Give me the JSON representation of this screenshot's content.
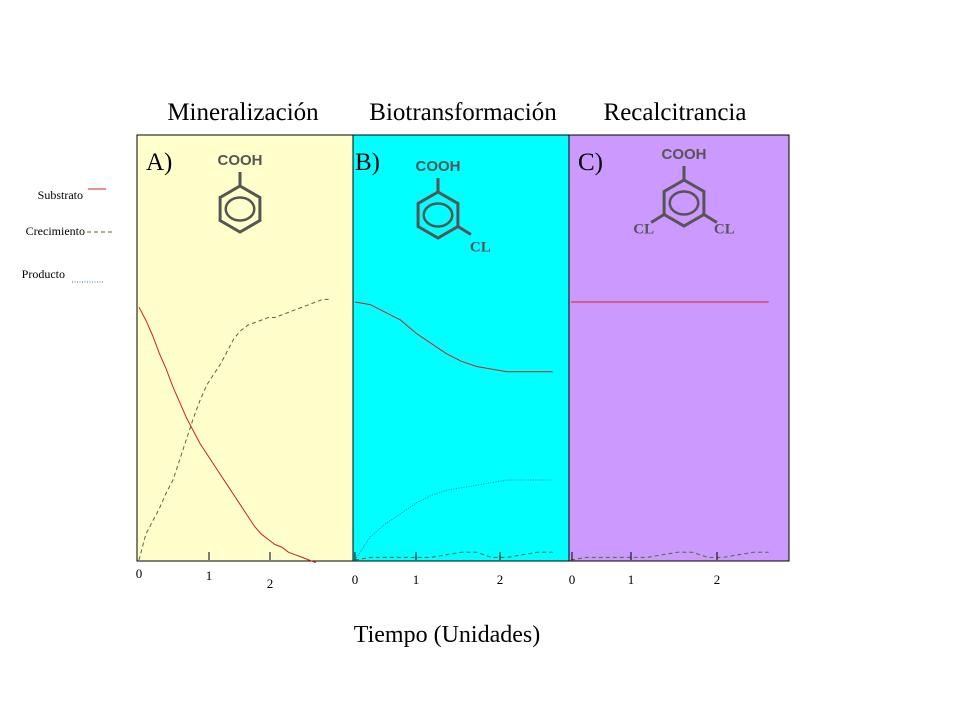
{
  "chart_data": {
    "type": "line",
    "xlabel": "Tiempo (Unidades)",
    "legend": {
      "placement": "left",
      "items": [
        {
          "label": "Substrato",
          "color": "#cc2222",
          "style": "solid"
        },
        {
          "label": "Crecimiento",
          "color": "#556b2f",
          "style": "dashed"
        },
        {
          "label": "Producto",
          "color": "#3a6fb0",
          "style": "dotted"
        }
      ]
    },
    "panels": [
      {
        "title": "Mineralización",
        "letter": "A)",
        "background": "#ffffcc",
        "molecule": {
          "top": "COOH",
          "substituents": []
        },
        "x_ticks": [
          "0",
          "1",
          "2"
        ],
        "series": [
          {
            "name": "Substrato",
            "x": [
              0,
              0.1,
              0.2,
              0.3,
              0.4,
              0.5,
              0.6,
              0.7,
              0.8,
              0.9,
              1.0,
              1.1,
              1.2,
              1.3,
              1.4,
              1.5,
              1.6,
              1.7,
              1.8,
              1.9,
              2.0,
              2.1,
              2.2,
              2.3,
              2.4,
              2.5,
              2.6
            ],
            "y": [
              0.98,
              0.93,
              0.87,
              0.8,
              0.74,
              0.67,
              0.61,
              0.55,
              0.5,
              0.45,
              0.41,
              0.37,
              0.33,
              0.29,
              0.25,
              0.21,
              0.17,
              0.13,
              0.1,
              0.08,
              0.06,
              0.05,
              0.03,
              0.02,
              0.01,
              0.0,
              -0.01
            ]
          },
          {
            "name": "Crecimiento",
            "x": [
              0,
              0.1,
              0.2,
              0.3,
              0.4,
              0.5,
              0.6,
              0.7,
              0.8,
              0.9,
              1.0,
              1.1,
              1.2,
              1.3,
              1.4,
              1.5,
              1.6,
              1.7,
              1.8,
              1.9,
              2.0,
              2.1,
              2.2,
              2.3,
              2.4,
              2.5,
              2.6,
              2.7,
              2.8
            ],
            "y": [
              0.0,
              0.1,
              0.15,
              0.2,
              0.26,
              0.31,
              0.39,
              0.47,
              0.55,
              0.62,
              0.68,
              0.72,
              0.76,
              0.81,
              0.86,
              0.89,
              0.91,
              0.92,
              0.93,
              0.94,
              0.94,
              0.95,
              0.96,
              0.97,
              0.98,
              0.99,
              1.0,
              1.01,
              1.01
            ]
          }
        ]
      },
      {
        "title": "Biotransformación",
        "letter": "B)",
        "background": "#00ffff",
        "molecule": {
          "top": "COOH",
          "substituents": [
            "CL"
          ]
        },
        "x_ticks": [
          "0",
          "1",
          "2"
        ],
        "series": [
          {
            "name": "Substrato",
            "x": [
              0,
              0.2,
              0.4,
              0.6,
              0.8,
              1.0,
              1.2,
              1.4,
              1.6,
              1.8,
              2.0,
              2.2,
              2.4,
              2.6
            ],
            "y": [
              1.0,
              0.99,
              0.96,
              0.93,
              0.88,
              0.84,
              0.8,
              0.77,
              0.75,
              0.74,
              0.73,
              0.73,
              0.73,
              0.73
            ]
          },
          {
            "name": "Crecimiento",
            "x": [
              0,
              0.2,
              0.4,
              0.6,
              0.8,
              1.0,
              1.2,
              1.4,
              1.6,
              1.8,
              2.0,
              2.2,
              2.4,
              2.6
            ],
            "y": [
              0.0,
              0.01,
              0.01,
              0.01,
              0.01,
              0.01,
              0.02,
              0.03,
              0.03,
              0.01,
              0.01,
              0.02,
              0.03,
              0.03
            ]
          },
          {
            "name": "Producto",
            "x": [
              0,
              0.2,
              0.4,
              0.6,
              0.8,
              1.0,
              1.2,
              1.4,
              1.6,
              1.8,
              2.0,
              2.2,
              2.4,
              2.6
            ],
            "y": [
              0.0,
              0.09,
              0.14,
              0.18,
              0.22,
              0.25,
              0.27,
              0.28,
              0.29,
              0.3,
              0.31,
              0.31,
              0.31,
              0.31
            ]
          }
        ]
      },
      {
        "title": "Recalcitrancia",
        "letter": "C)",
        "background": "#cc99ff",
        "molecule": {
          "top": "COOH",
          "substituents": [
            "CL",
            "CL"
          ]
        },
        "x_ticks": [
          "0",
          "1",
          "2"
        ],
        "series": [
          {
            "name": "Substrato",
            "x": [
              0,
              2.6
            ],
            "y": [
              1.0,
              1.0
            ]
          },
          {
            "name": "Crecimiento",
            "x": [
              0,
              0.2,
              0.4,
              0.6,
              0.8,
              1.0,
              1.2,
              1.4,
              1.6,
              1.8,
              2.0,
              2.2,
              2.4,
              2.6
            ],
            "y": [
              0.0,
              0.01,
              0.01,
              0.01,
              0.01,
              0.01,
              0.02,
              0.03,
              0.03,
              0.01,
              0.01,
              0.02,
              0.03,
              0.03
            ]
          }
        ]
      }
    ]
  }
}
